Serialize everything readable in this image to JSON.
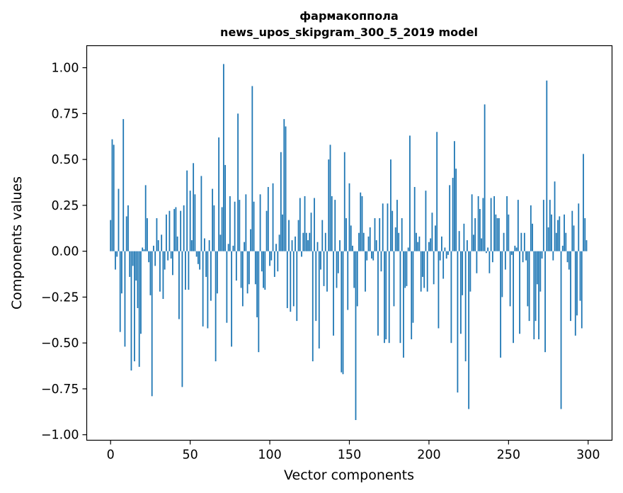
{
  "chart_data": {
    "type": "bar",
    "title": "фармакоппола",
    "subtitle": "news_upos_skipgram_300_5_2019 model",
    "xlabel": "Vector components",
    "ylabel": "Components values",
    "xlim": [
      -15,
      315
    ],
    "ylim": [
      -1.03,
      1.12
    ],
    "xticks": [
      0,
      50,
      100,
      150,
      200,
      250,
      300
    ],
    "yticks": [
      -1.0,
      -0.75,
      -0.5,
      -0.25,
      0.0,
      0.25,
      0.5,
      0.75,
      1.0
    ],
    "ytick_labels": [
      "−1.00",
      "−0.75",
      "−0.50",
      "−0.25",
      "0.00",
      "0.25",
      "0.50",
      "0.75",
      "1.00"
    ],
    "xtick_labels": [
      "0",
      "50",
      "100",
      "150",
      "200",
      "250",
      "300"
    ],
    "grid": false,
    "bar_color": "#1f77b4",
    "series": [
      {
        "name": "components",
        "values": [
          0.17,
          0.61,
          0.58,
          -0.1,
          -0.03,
          0.34,
          -0.44,
          -0.23,
          0.72,
          -0.52,
          0.19,
          0.25,
          -0.14,
          -0.65,
          -0.08,
          -0.6,
          -0.16,
          -0.31,
          -0.63,
          -0.45,
          0.02,
          0.01,
          0.36,
          0.18,
          -0.06,
          -0.24,
          -0.79,
          0.03,
          -0.08,
          0.18,
          0.06,
          -0.22,
          0.09,
          -0.26,
          -0.1,
          0.2,
          -0.05,
          0.22,
          -0.04,
          -0.13,
          0.23,
          0.24,
          0.08,
          -0.37,
          0.22,
          -0.74,
          0.25,
          -0.21,
          0.44,
          -0.21,
          0.33,
          0.06,
          0.48,
          0.31,
          -0.03,
          -0.07,
          -0.1,
          0.41,
          -0.41,
          0.07,
          -0.14,
          -0.42,
          0.06,
          -0.27,
          0.34,
          0.25,
          -0.6,
          -0.23,
          0.62,
          0.09,
          0.24,
          1.02,
          0.47,
          -0.39,
          0.04,
          0.3,
          -0.52,
          0.03,
          0.27,
          -0.16,
          0.75,
          0.28,
          -0.2,
          -0.3,
          0.05,
          0.31,
          -0.23,
          -0.18,
          0.12,
          0.9,
          0.27,
          -0.18,
          -0.36,
          -0.55,
          0.31,
          -0.11,
          -0.2,
          -0.21,
          0.22,
          0.35,
          -0.08,
          -0.05,
          0.37,
          -0.14,
          0.04,
          -0.11,
          0.09,
          0.54,
          0.2,
          0.72,
          0.68,
          -0.31,
          0.17,
          -0.33,
          0.06,
          -0.3,
          0.08,
          -0.38,
          0.17,
          0.29,
          -0.03,
          0.1,
          0.3,
          0.1,
          0.06,
          0.1,
          0.21,
          -0.6,
          0.29,
          -0.38,
          0.05,
          -0.53,
          -0.1,
          0.17,
          -0.19,
          0.1,
          -0.22,
          0.5,
          0.58,
          0.3,
          -0.46,
          0.28,
          -0.2,
          -0.12,
          0.06,
          -0.66,
          -0.67,
          0.54,
          0.18,
          -0.32,
          0.37,
          0.14,
          0.03,
          -0.2,
          -0.92,
          -0.3,
          0.1,
          0.32,
          0.3,
          0.1,
          -0.22,
          -0.05,
          0.08,
          0.13,
          -0.04,
          -0.05,
          0.18,
          0.06,
          -0.46,
          0.18,
          -0.11,
          0.26,
          -0.5,
          -0.48,
          0.26,
          -0.5,
          0.5,
          0.22,
          -0.3,
          0.13,
          0.28,
          0.1,
          -0.5,
          0.18,
          -0.58,
          -0.2,
          -0.19,
          0.02,
          0.63,
          -0.48,
          -0.39,
          0.35,
          0.1,
          0.05,
          0.08,
          -0.22,
          -0.14,
          -0.2,
          0.33,
          -0.22,
          0.05,
          0.07,
          0.21,
          -0.18,
          0.14,
          0.65,
          -0.42,
          -0.05,
          0.08,
          -0.15,
          0.02,
          -0.04,
          -0.02,
          0.36,
          -0.5,
          0.4,
          0.6,
          0.45,
          -0.77,
          0.11,
          -0.45,
          -0.24,
          0.15,
          -0.6,
          0.06,
          -0.86,
          -0.22,
          0.31,
          0.09,
          0.18,
          -0.12,
          0.3,
          0.23,
          0.07,
          0.29,
          0.8,
          -0.01,
          0.02,
          -0.12,
          0.29,
          -0.06,
          0.3,
          0.2,
          0.18,
          0.18,
          -0.58,
          -0.25,
          0.1,
          -0.1,
          0.3,
          0.2,
          -0.3,
          -0.02,
          -0.5,
          0.03,
          0.02,
          0.28,
          -0.45,
          0.1,
          -0.06,
          0.1,
          -0.05,
          -0.3,
          -0.38,
          0.25,
          0.15,
          -0.48,
          -0.38,
          -0.18,
          -0.48,
          -0.22,
          -0.04,
          0.28,
          -0.55,
          0.93,
          0.13,
          0.28,
          0.2,
          -0.05,
          0.38,
          0.1,
          0.17,
          0.19,
          -0.86,
          0.03,
          0.2,
          0.1,
          -0.06,
          -0.1,
          -0.38,
          0.22,
          0.14,
          -0.46,
          -0.35,
          0.26,
          -0.27,
          -0.42,
          0.53,
          0.18,
          0.06
        ]
      }
    ]
  }
}
